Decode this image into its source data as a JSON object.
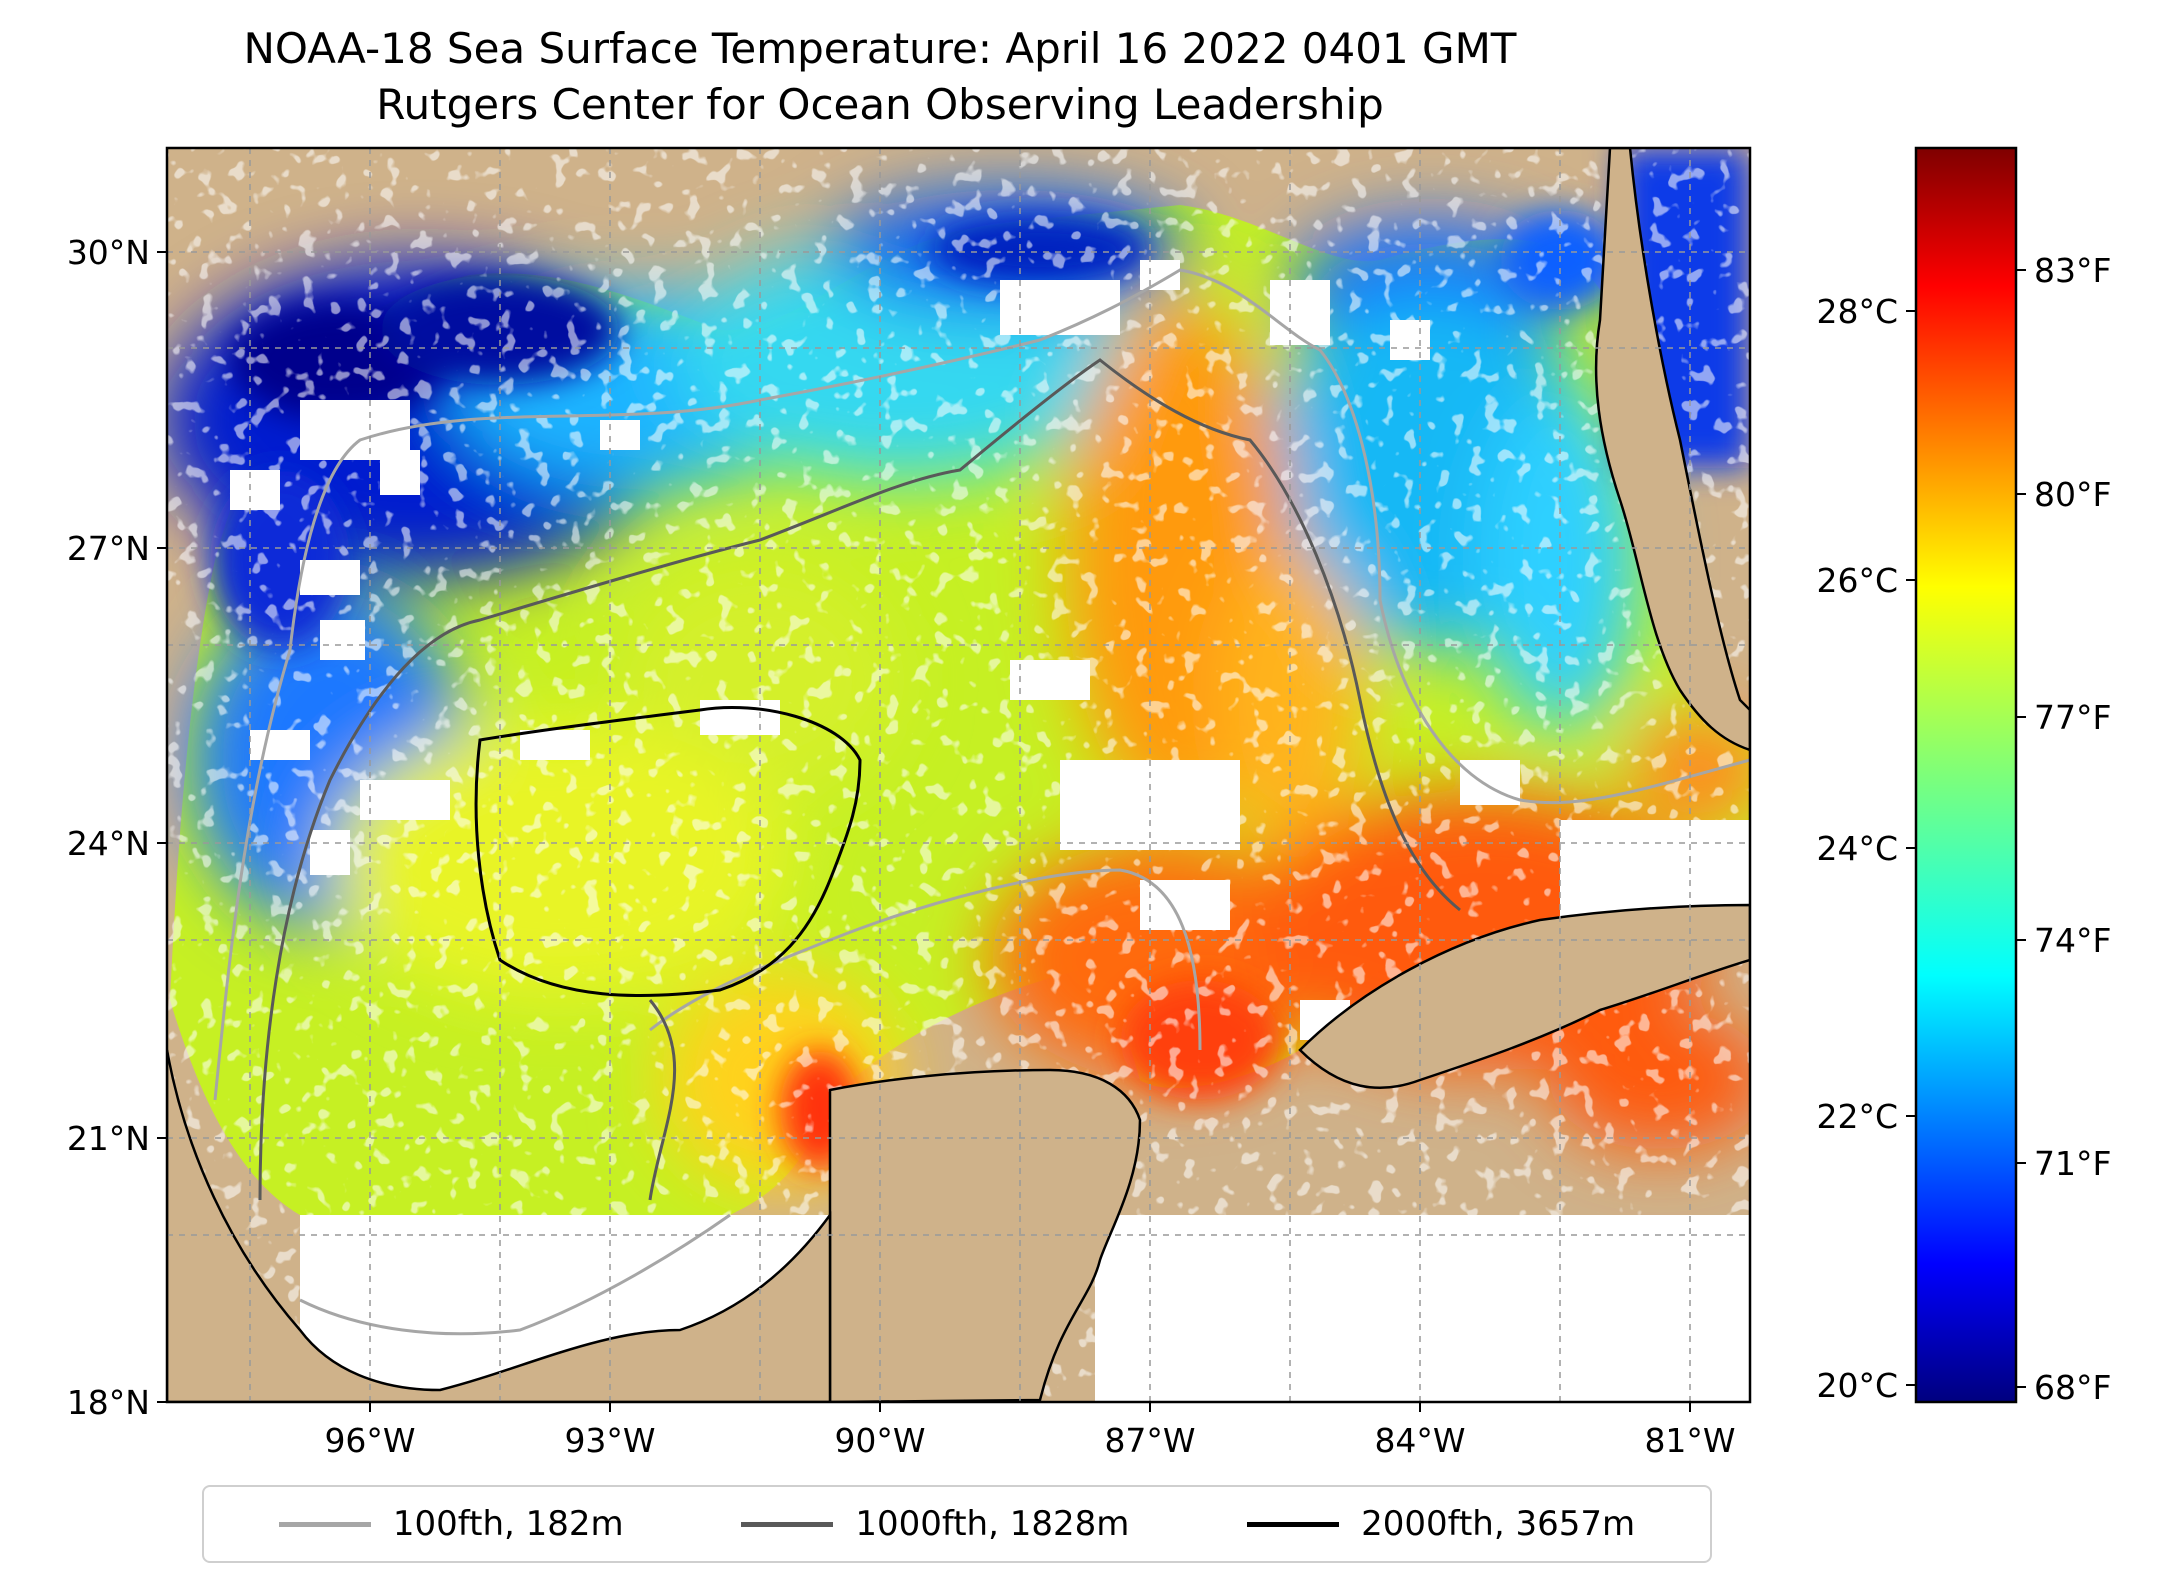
{
  "title": {
    "line1": "NOAA-18 Sea Surface Temperature: April 16 2022 0401 GMT",
    "line2": "Rutgers Center for Ocean Observing Leadership"
  },
  "map": {
    "lat_labels": [
      "30°N",
      "27°N",
      "24°N",
      "21°N",
      "18°N"
    ],
    "lon_labels": [
      "96°W",
      "93°W",
      "90°W",
      "87°W",
      "84°W",
      "81°W"
    ],
    "lat_range": [
      18,
      31.2
    ],
    "lon_range": [
      -98.3,
      -80.3
    ],
    "land_color": "#cfb28a",
    "gridlines": true
  },
  "colorbar": {
    "celsius_labels": [
      "28°C",
      "26°C",
      "24°C",
      "22°C",
      "20°C"
    ],
    "fahrenheit_labels": [
      "83°F",
      "80°F",
      "77°F",
      "74°F",
      "71°F",
      "68°F"
    ],
    "colormap": "jet"
  },
  "legend": [
    {
      "label": "100fth, 182m",
      "color": "#a6a6a6"
    },
    {
      "label": "1000fth, 1828m",
      "color": "#595959"
    },
    {
      "label": "2000fth, 3657m",
      "color": "#000000"
    }
  ]
}
